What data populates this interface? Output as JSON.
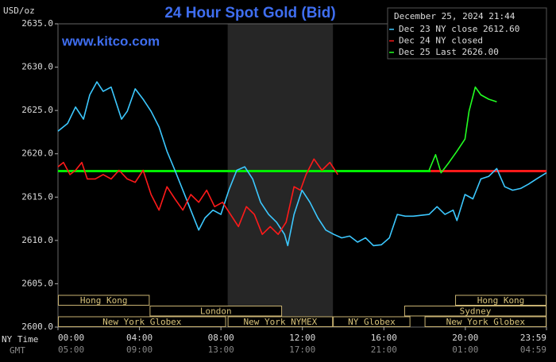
{
  "chart_data": {
    "type": "line",
    "title": "24 Hour Spot Gold (Bid)",
    "website": "www.kitco.com",
    "y_unit": "USD/oz",
    "timestamp": "December 25, 2024 21:44",
    "x_axis_label": "NY Time",
    "x2_axis_label": "GMT",
    "xlim": [
      0,
      23.983
    ],
    "xticks": [
      {
        "value": 0,
        "label": "00:00"
      },
      {
        "value": 4,
        "label": "04:00"
      },
      {
        "value": 8,
        "label": "08:00"
      },
      {
        "value": 12,
        "label": "12:00"
      },
      {
        "value": 16,
        "label": "16:00"
      },
      {
        "value": 20,
        "label": "20:00"
      },
      {
        "value": 23.983,
        "label": "23:59"
      }
    ],
    "gmt_labels": [
      "05:00",
      "09:00",
      "13:00",
      "17:00",
      "21:00",
      "01:00",
      "04:59"
    ],
    "ylim": [
      2600,
      2635
    ],
    "yticks": [
      {
        "value": 2600,
        "label": "2600.0"
      },
      {
        "value": 2605,
        "label": "2605.0"
      },
      {
        "value": 2610,
        "label": "2610.0"
      },
      {
        "value": 2615,
        "label": "2615.0"
      },
      {
        "value": 2620,
        "label": "2620.0"
      },
      {
        "value": 2625,
        "label": "2625.0"
      },
      {
        "value": 2630,
        "label": "2630.0"
      },
      {
        "value": 2635,
        "label": "2635.0"
      }
    ],
    "highlight_x": [
      8.33,
      13.5
    ],
    "reference_lines": [
      {
        "y": 2618,
        "x": [
          0,
          18.3
        ],
        "color": "#00ee00"
      },
      {
        "y": 2618,
        "x": [
          18.3,
          23.983
        ],
        "color": "#ff1a1a"
      }
    ],
    "sessions": [
      [
        {
          "label": "Hong Kong",
          "x": [
            0,
            4.5
          ]
        },
        {
          "label": "Hong Kong",
          "x": [
            19.5,
            23.983
          ]
        }
      ],
      [
        {
          "label": "London",
          "x": [
            4.5,
            11
          ]
        },
        {
          "label": "Sydney",
          "x": [
            17,
            23.983
          ]
        }
      ],
      [
        {
          "label": "New York Globex",
          "x": [
            0,
            8.25
          ]
        },
        {
          "label": "New York NYMEX",
          "x": [
            8.33,
            13.5
          ]
        },
        {
          "label": "NY Globex",
          "x": [
            13.5,
            17.3
          ]
        },
        {
          "label": "New York Globex",
          "x": [
            18,
            23.983
          ]
        }
      ]
    ],
    "series": [
      {
        "name": "Dec 23 NY close 2612.60",
        "color": "#3cc8ff",
        "x": [
          0,
          0.47,
          0.86,
          1.25,
          1.56,
          1.91,
          2.22,
          2.61,
          3.12,
          3.4,
          3.79,
          4.18,
          4.57,
          4.96,
          5.35,
          5.74,
          6.13,
          6.52,
          6.91,
          7.22,
          7.61,
          8.0,
          8.39,
          8.78,
          9.17,
          9.56,
          9.95,
          10.34,
          10.73,
          11.12,
          11.28,
          11.59,
          11.98,
          12.37,
          12.76,
          13.15,
          13.54,
          13.93,
          14.32,
          14.71,
          15.1,
          15.49,
          15.88,
          16.27,
          16.66,
          17.05,
          17.44,
          18.22,
          18.61,
          19.0,
          19.4,
          19.59,
          19.98,
          20.37,
          20.76,
          21.15,
          21.54,
          21.93,
          22.32,
          22.71,
          23.1,
          23.49,
          23.98
        ],
        "values": [
          2622.6,
          2623.5,
          2625.4,
          2624.0,
          2626.8,
          2628.3,
          2627.2,
          2627.7,
          2624.0,
          2624.9,
          2627.5,
          2626.3,
          2624.9,
          2623.1,
          2620.3,
          2618.1,
          2615.8,
          2613.5,
          2611.2,
          2612.6,
          2613.5,
          2613.0,
          2615.8,
          2618.1,
          2618.5,
          2617.1,
          2614.4,
          2613.0,
          2612.1,
          2610.7,
          2609.4,
          2613.0,
          2615.8,
          2614.4,
          2612.6,
          2611.2,
          2610.7,
          2610.3,
          2610.5,
          2609.8,
          2610.3,
          2609.4,
          2609.5,
          2610.3,
          2613.0,
          2612.8,
          2612.8,
          2613.0,
          2613.9,
          2613.0,
          2613.5,
          2612.3,
          2615.3,
          2614.8,
          2617.1,
          2617.4,
          2618.3,
          2616.2,
          2615.8,
          2616.0,
          2616.5,
          2617.1,
          2617.8
        ]
      },
      {
        "name": "Dec 24 NY closed",
        "color": "#ff1a1a",
        "x": [
          0,
          0.27,
          0.59,
          0.86,
          1.17,
          1.44,
          1.83,
          2.22,
          2.61,
          3.0,
          3.4,
          3.79,
          4.18,
          4.57,
          4.96,
          5.35,
          5.74,
          6.13,
          6.52,
          6.91,
          7.3,
          7.69,
          8.08,
          8.47,
          8.86,
          9.25,
          9.64,
          10.03,
          10.42,
          10.81,
          11.2,
          11.59,
          11.9,
          12.18,
          12.57,
          12.96,
          13.35,
          13.74
        ],
        "values": [
          2618.5,
          2619.0,
          2617.6,
          2618.1,
          2619.0,
          2617.1,
          2617.1,
          2617.6,
          2617.1,
          2618.1,
          2617.1,
          2616.7,
          2618.1,
          2615.3,
          2613.5,
          2616.2,
          2614.8,
          2613.5,
          2615.3,
          2614.4,
          2615.8,
          2613.9,
          2614.4,
          2613.0,
          2611.6,
          2613.9,
          2613.0,
          2610.7,
          2611.6,
          2610.7,
          2612.1,
          2616.2,
          2615.8,
          2617.6,
          2619.4,
          2618.1,
          2619.0,
          2617.6
        ]
      },
      {
        "name": "Dec 25 Last 2626.00",
        "color": "#22ff22",
        "x": [
          18.22,
          18.54,
          18.81,
          19.2,
          19.59,
          19.98,
          20.18,
          20.49,
          20.76,
          21.15,
          21.54
        ],
        "values": [
          2618.1,
          2619.9,
          2617.8,
          2619.0,
          2620.3,
          2621.7,
          2624.9,
          2627.7,
          2626.8,
          2626.3,
          2626.0
        ]
      }
    ]
  }
}
